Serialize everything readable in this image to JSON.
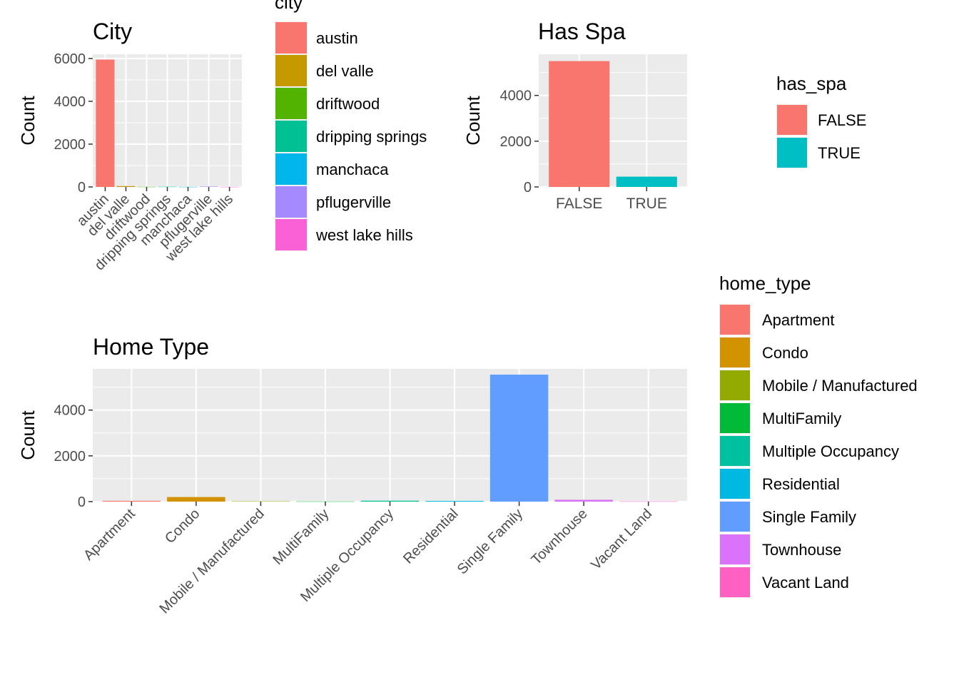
{
  "chart_data": [
    {
      "id": "city",
      "type": "bar",
      "title": "City",
      "xlabel": "",
      "ylabel": "Count",
      "ylim": [
        0,
        6200
      ],
      "yticks": [
        0,
        2000,
        4000,
        6000
      ],
      "grid": true,
      "categories": [
        "austin",
        "del valle",
        "driftwood",
        "dripping springs",
        "manchaca",
        "pflugerville",
        "west lake hills"
      ],
      "values": [
        5950,
        40,
        8,
        12,
        6,
        20,
        5
      ],
      "legend": {
        "title": "city",
        "placement": "right",
        "entries": [
          "austin",
          "del valle",
          "driftwood",
          "dripping springs",
          "manchaca",
          "pflugerville",
          "west lake hills"
        ]
      },
      "colors": [
        "#F8766D",
        "#C49A00",
        "#53B400",
        "#00C094",
        "#00B6EB",
        "#A58AFF",
        "#FB61D7"
      ]
    },
    {
      "id": "has_spa",
      "type": "bar",
      "title": "Has Spa",
      "xlabel": "",
      "ylabel": "Count",
      "ylim": [
        0,
        5800
      ],
      "yticks": [
        0,
        2000,
        4000
      ],
      "grid": true,
      "categories": [
        "FALSE",
        "TRUE"
      ],
      "values": [
        5500,
        450
      ],
      "legend": {
        "title": "has_spa",
        "placement": "right",
        "entries": [
          "FALSE",
          "TRUE"
        ]
      },
      "colors": [
        "#F8766D",
        "#00BFC4"
      ]
    },
    {
      "id": "home_type",
      "type": "bar",
      "title": "Home Type",
      "xlabel": "",
      "ylabel": "Count",
      "ylim": [
        0,
        5800
      ],
      "yticks": [
        0,
        2000,
        4000
      ],
      "grid": true,
      "categories": [
        "Apartment",
        "Condo",
        "Mobile / Manufactured",
        "MultiFamily",
        "Multiple Occupancy",
        "Residential",
        "Single Family",
        "Townhouse",
        "Vacant Land"
      ],
      "values": [
        35,
        200,
        15,
        8,
        40,
        30,
        5550,
        80,
        10
      ],
      "legend": {
        "title": "home_type",
        "placement": "right",
        "entries": [
          "Apartment",
          "Condo",
          "Mobile / Manufactured",
          "MultiFamily",
          "Multiple Occupancy",
          "Residential",
          "Single Family",
          "Townhouse",
          "Vacant Land"
        ]
      },
      "colors": [
        "#F8766D",
        "#D39200",
        "#93AA00",
        "#00BA38",
        "#00C19F",
        "#00B9E3",
        "#619CFF",
        "#DB72FB",
        "#FF61C3"
      ]
    }
  ]
}
